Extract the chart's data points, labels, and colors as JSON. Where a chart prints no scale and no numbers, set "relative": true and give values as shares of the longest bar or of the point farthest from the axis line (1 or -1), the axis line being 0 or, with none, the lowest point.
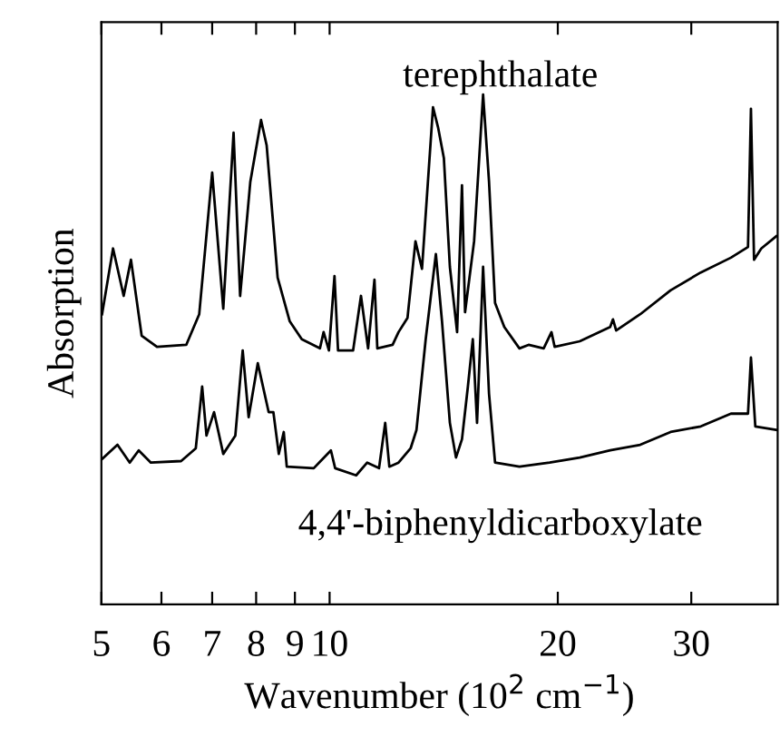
{
  "chart_data": {
    "type": "line",
    "relative": true,
    "log": "x",
    "xlabel": "Wavenumber (10$^{2}$ cm$^{−1}$)",
    "ylabel": "Absorption",
    "xlim": [
      5,
      39
    ],
    "xticks": [
      5,
      6,
      7,
      8,
      9,
      10,
      20,
      30
    ],
    "grid": false,
    "tick_labels": "x",
    "marker": "none",
    "line_style": "solid",
    "series": [
      {
        "name": "terephthalate",
        "color": "#000000",
        "x": [
          5.01,
          5.18,
          5.35,
          5.47,
          5.65,
          5.92,
          6.47,
          6.73,
          7.0,
          7.24,
          7.47,
          7.62,
          7.86,
          8.12,
          8.26,
          8.54,
          8.86,
          9.19,
          9.71,
          9.82,
          9.98,
          10.15,
          10.26,
          10.74,
          11.0,
          11.24,
          11.46,
          11.56,
          12.11,
          12.33,
          12.67,
          12.98,
          13.24,
          13.69,
          13.9,
          14.15,
          14.41,
          14.73,
          14.95,
          15.09,
          15.51,
          15.94,
          16.23,
          16.53,
          17.0,
          17.8,
          18.3,
          19.16,
          19.62,
          19.81,
          21.38,
          23.45,
          23.65,
          23.88,
          25.69,
          28.17,
          30.88,
          33.84,
          35.64,
          35.96,
          36.3,
          37.11,
          38.84
        ],
        "values": [
          0.569,
          0.698,
          0.605,
          0.676,
          0.527,
          0.505,
          0.509,
          0.569,
          0.847,
          0.58,
          0.925,
          0.605,
          0.829,
          0.95,
          0.9,
          0.641,
          0.555,
          0.52,
          0.502,
          0.534,
          0.498,
          0.644,
          0.498,
          0.498,
          0.605,
          0.502,
          0.637,
          0.502,
          0.509,
          0.534,
          0.562,
          0.712,
          0.658,
          0.975,
          0.936,
          0.875,
          0.662,
          0.534,
          0.822,
          0.573,
          0.712,
          1.0,
          0.829,
          0.591,
          0.544,
          0.502,
          0.509,
          0.502,
          0.534,
          0.505,
          0.516,
          0.544,
          0.559,
          0.537,
          0.569,
          0.616,
          0.651,
          0.68,
          0.701,
          0.972,
          0.676,
          0.698,
          0.722
        ]
      },
      {
        "name": "4,4'-biphenyldicarboxylate",
        "color": "#000000",
        "x": [
          5.01,
          5.25,
          5.45,
          5.6,
          5.81,
          6.37,
          6.66,
          6.79,
          6.88,
          7.04,
          7.24,
          7.51,
          7.68,
          7.82,
          8.04,
          8.31,
          8.43,
          8.57,
          8.7,
          8.78,
          9.53,
          10.04,
          10.17,
          10.84,
          11.21,
          11.62,
          11.84,
          11.99,
          12.33,
          12.79,
          13.02,
          13.39,
          13.81,
          14.07,
          14.41,
          14.68,
          14.95,
          15.22,
          15.45,
          15.65,
          15.94,
          16.23,
          16.53,
          17.8,
          19.51,
          21.38,
          23.45,
          25.69,
          28.17,
          30.88,
          33.84,
          35.64,
          35.96,
          36.44,
          38.84
        ],
        "values": [
          0.285,
          0.313,
          0.278,
          0.302,
          0.278,
          0.281,
          0.306,
          0.427,
          0.331,
          0.377,
          0.295,
          0.331,
          0.498,
          0.367,
          0.473,
          0.377,
          0.377,
          0.295,
          0.338,
          0.27,
          0.267,
          0.302,
          0.267,
          0.253,
          0.278,
          0.267,
          0.356,
          0.27,
          0.278,
          0.306,
          0.342,
          0.52,
          0.687,
          0.555,
          0.356,
          0.288,
          0.324,
          0.427,
          0.52,
          0.356,
          0.662,
          0.413,
          0.278,
          0.27,
          0.278,
          0.288,
          0.302,
          0.313,
          0.338,
          0.349,
          0.374,
          0.374,
          0.484,
          0.349,
          0.342
        ]
      }
    ]
  }
}
